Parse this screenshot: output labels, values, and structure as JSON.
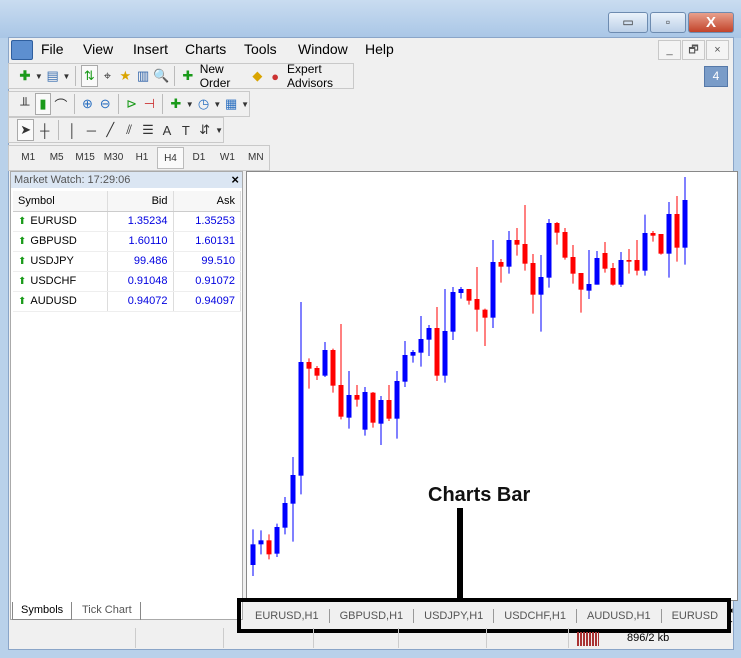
{
  "window": {
    "controls": {
      "minimize": "▭",
      "maximize": "▫",
      "close": "X"
    }
  },
  "menu": [
    "File",
    "View",
    "Insert",
    "Charts",
    "Tools",
    "Window",
    "Help"
  ],
  "mdi_controls": {
    "minimize": "_",
    "restore": "🗗",
    "close": "×"
  },
  "toolbar": {
    "new_order": "New Order",
    "expert_advisors": "Expert Advisors",
    "notification_count": "4"
  },
  "timeframes": [
    "M1",
    "M5",
    "M15",
    "M30",
    "H1",
    "H4",
    "D1",
    "W1",
    "MN"
  ],
  "selected_timeframe": "H4",
  "market_watch": {
    "title": "Market Watch: 17:29:06",
    "close": "×",
    "columns": [
      "Symbol",
      "Bid",
      "Ask"
    ],
    "rows": [
      {
        "symbol": "EURUSD",
        "bid": "1.35234",
        "ask": "1.35253"
      },
      {
        "symbol": "GBPUSD",
        "bid": "1.60110",
        "ask": "1.60131"
      },
      {
        "symbol": "USDJPY",
        "bid": "99.486",
        "ask": "99.510"
      },
      {
        "symbol": "USDCHF",
        "bid": "0.91048",
        "ask": "0.91072"
      },
      {
        "symbol": "AUDUSD",
        "bid": "0.94072",
        "ask": "0.94097"
      }
    ],
    "tabs": [
      "Symbols",
      "Tick Chart"
    ],
    "active_tab": "Symbols"
  },
  "charts_bar": {
    "tabs": [
      "EURUSD,H1",
      "GBPUSD,H1",
      "USDJPY,H1",
      "USDCHF,H1",
      "AUDUSD,H1",
      "EURUSD"
    ],
    "scroll": "◂ ▸"
  },
  "annotation": "Charts Bar",
  "status": {
    "traffic": "896/2 kb"
  },
  "colors": {
    "bull": "#0000ff",
    "bear": "#ff0000",
    "price_text": "#0000e0"
  },
  "chart_data": {
    "type": "candlestick",
    "candles": [
      [
        48,
        155,
        15,
        110
      ],
      [
        110,
        152,
        80,
        122
      ],
      [
        122,
        140,
        65,
        80
      ],
      [
        82,
        172,
        72,
        162
      ],
      [
        160,
        252,
        140,
        234
      ],
      [
        232,
        372,
        118,
        318
      ],
      [
        316,
        837,
        260,
        657
      ],
      [
        657,
        668,
        577,
        637
      ],
      [
        639,
        645,
        603,
        616
      ],
      [
        616,
        717,
        612,
        693
      ],
      [
        693,
        697,
        565,
        586
      ],
      [
        588,
        771,
        485,
        493
      ],
      [
        490,
        630,
        457,
        558
      ],
      [
        558,
        588,
        523,
        544
      ],
      [
        454,
        582,
        436,
        567
      ],
      [
        565,
        567,
        460,
        475
      ],
      [
        472,
        555,
        408,
        543
      ],
      [
        543,
        588,
        480,
        487
      ],
      [
        487,
        630,
        427,
        600
      ],
      [
        598,
        720,
        582,
        678
      ],
      [
        676,
        693,
        655,
        687
      ],
      [
        685,
        795,
        643,
        726
      ],
      [
        724,
        768,
        675,
        759
      ],
      [
        759,
        822,
        600,
        616
      ],
      [
        616,
        876,
        595,
        750
      ],
      [
        748,
        882,
        723,
        867
      ],
      [
        864,
        882,
        847,
        876
      ],
      [
        876,
        876,
        829,
        841
      ],
      [
        846,
        942,
        748,
        814
      ],
      [
        814,
        817,
        705,
        790
      ],
      [
        790,
        1023,
        759,
        957
      ],
      [
        957,
        966,
        895,
        943
      ],
      [
        943,
        1050,
        922,
        1023
      ],
      [
        1023,
        1059,
        976,
        1009
      ],
      [
        1011,
        1128,
        931,
        952
      ],
      [
        954,
        981,
        802,
        859
      ],
      [
        859,
        978,
        748,
        912
      ],
      [
        910,
        1086,
        880,
        1074
      ],
      [
        1074,
        1077,
        1009,
        1045
      ],
      [
        1047,
        1059,
        964,
        970
      ],
      [
        972,
        1008,
        892,
        922
      ],
      [
        924,
        924,
        805,
        874
      ],
      [
        871,
        993,
        846,
        891
      ],
      [
        889,
        990,
        889,
        969
      ],
      [
        984,
        1017,
        925,
        937
      ],
      [
        939,
        954,
        886,
        889
      ],
      [
        889,
        987,
        882,
        963
      ],
      [
        963,
        996,
        922,
        958
      ],
      [
        963,
        1023,
        917,
        931
      ],
      [
        931,
        1099,
        916,
        1044
      ],
      [
        1044,
        1050,
        1018,
        1036
      ],
      [
        1041,
        1041,
        979,
        982
      ],
      [
        982,
        1137,
        910,
        1101
      ],
      [
        1101,
        1155,
        958,
        1000
      ],
      [
        1000,
        1212,
        949,
        1143
      ]
    ],
    "candle_format": [
      "open",
      "high",
      "low",
      "close"
    ]
  }
}
